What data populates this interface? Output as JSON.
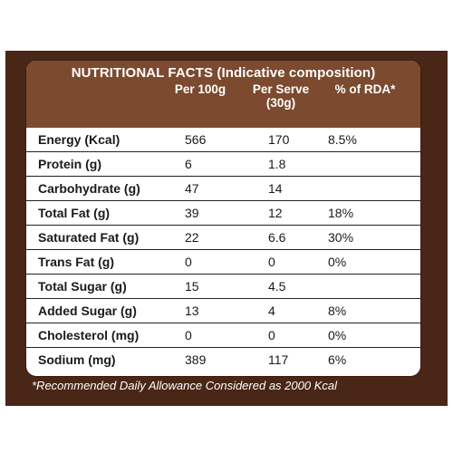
{
  "header": {
    "title": "NUTRITIONAL FACTS (Indicative composition)",
    "col_per_100g": "Per 100g",
    "col_per_serve": "Per Serve",
    "col_per_serve_sub": "(30g)",
    "col_rda": "% of RDA*"
  },
  "rows": [
    {
      "name": "Energy (Kcal)",
      "per100": "566",
      "perServe": "170",
      "rda": "8.5%"
    },
    {
      "name": "Protein (g)",
      "per100": "6",
      "perServe": "1.8",
      "rda": ""
    },
    {
      "name": "Carbohydrate (g)",
      "per100": "47",
      "perServe": "14",
      "rda": ""
    },
    {
      "name": "Total Fat (g)",
      "per100": "39",
      "perServe": "12",
      "rda": "18%"
    },
    {
      "name": "Saturated Fat (g)",
      "per100": "22",
      "perServe": "6.6",
      "rda": "30%"
    },
    {
      "name": "Trans Fat (g)",
      "per100": "0",
      "perServe": "0",
      "rda": "0%"
    },
    {
      "name": "Total Sugar (g)",
      "per100": "15",
      "perServe": "4.5",
      "rda": ""
    },
    {
      "name": "Added Sugar (g)",
      "per100": "13",
      "perServe": "4",
      "rda": "8%"
    },
    {
      "name": "Cholesterol (mg)",
      "per100": "0",
      "perServe": "0",
      "rda": "0%"
    },
    {
      "name": "Sodium (mg)",
      "per100": "389",
      "perServe": "117",
      "rda": "6%"
    }
  ],
  "footnote": "*Recommended Daily Allowance Considered as 2000 Kcal",
  "colors": {
    "panel": "#4a2616",
    "header": "#7c4a2f",
    "text": "#1a1a1a"
  }
}
